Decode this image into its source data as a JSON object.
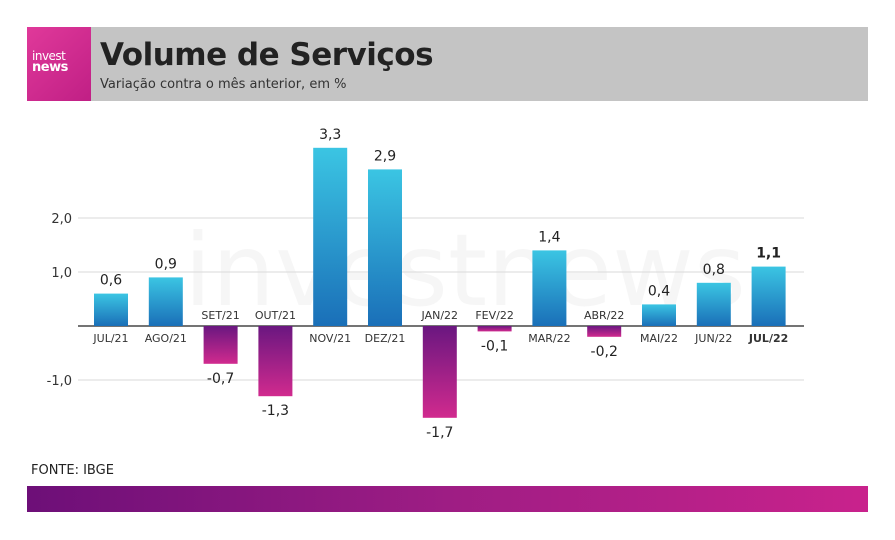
{
  "header": {
    "logo_line1": "invest",
    "logo_line2": "news",
    "title": "Volume de Serviços",
    "subtitle": "Variação contra o mês anterior, em %"
  },
  "watermark": "investnews",
  "source": "FONTE: IBGE",
  "colors": {
    "positive_top": "#3bc5e3",
    "positive_bottom": "#1a6fb8",
    "negative_top": "#6a1780",
    "negative_bottom": "#d12a8e",
    "header_bg": "#c4c4c4",
    "logo_bg": "#d6338f"
  },
  "chart_data": {
    "type": "bar",
    "categories": [
      "JUL/21",
      "AGO/21",
      "SET/21",
      "OUT/21",
      "NOV/21",
      "DEZ/21",
      "JAN/22",
      "FEV/22",
      "MAR/22",
      "ABR/22",
      "MAI/22",
      "JUN/22",
      "JUL/22"
    ],
    "values": [
      0.6,
      0.9,
      -0.7,
      -1.3,
      3.3,
      2.9,
      -1.7,
      -0.1,
      1.4,
      -0.2,
      0.4,
      0.8,
      1.1
    ],
    "value_labels": [
      "0,6",
      "0,9",
      "-0,7",
      "-1,3",
      "3,3",
      "2,9",
      "-1,7",
      "-0,1",
      "1,4",
      "-0,2",
      "0,4",
      "0,8",
      "1,1"
    ],
    "highlight_index": 12,
    "y_ticks": [
      {
        "value": 2.0,
        "label": "2,0"
      },
      {
        "value": 1.0,
        "label": "1,0"
      },
      {
        "value": -1.0,
        "label": "-1,0"
      }
    ],
    "ylim": [
      -1.7,
      3.3
    ],
    "grid": true,
    "title": "Volume de Serviços",
    "xlabel": "",
    "ylabel": ""
  }
}
